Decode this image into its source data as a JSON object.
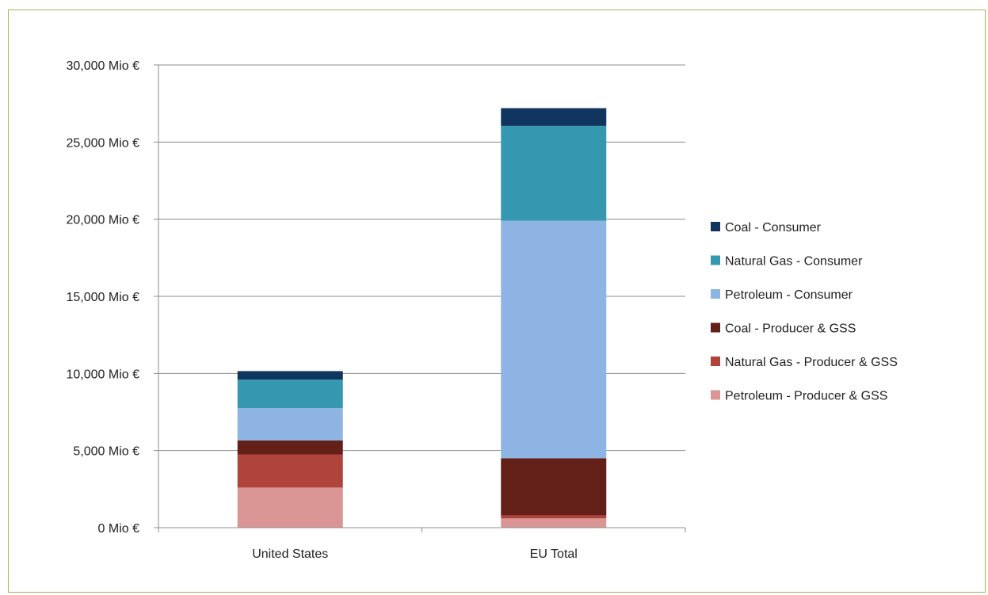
{
  "chart_data": {
    "type": "bar",
    "stacked": true,
    "title": "",
    "xlabel": "",
    "ylabel": "",
    "ylim": [
      0,
      30000
    ],
    "yticks": [
      0,
      5000,
      10000,
      15000,
      20000,
      25000,
      30000
    ],
    "ytick_labels": [
      "0 Mio €",
      "5,000 Mio €",
      "10,000 Mio €",
      "15,000 Mio €",
      "20,000 Mio €",
      "25,000 Mio €",
      "30,000 Mio €"
    ],
    "categories": [
      "United States",
      "EU Total"
    ],
    "grid": true,
    "legend_position": "right",
    "series": [
      {
        "name": "Petroleum - Producer & GSS",
        "color": "#d99694",
        "values": [
          2600,
          600
        ]
      },
      {
        "name": "Natural Gas - Producer & GSS",
        "color": "#b0443c",
        "values": [
          2150,
          200
        ]
      },
      {
        "name": "Coal - Producer & GSS",
        "color": "#632019",
        "values": [
          900,
          3700
        ]
      },
      {
        "name": "Petroleum - Consumer",
        "color": "#8eb4e3",
        "values": [
          2100,
          15400
        ]
      },
      {
        "name": "Natural Gas - Consumer",
        "color": "#3698b0",
        "values": [
          1850,
          6150
        ]
      },
      {
        "name": "Coal - Consumer",
        "color": "#10355f",
        "values": [
          550,
          1150
        ]
      }
    ],
    "legend_order": [
      "Coal - Consumer",
      "Natural Gas - Consumer",
      "Petroleum - Consumer",
      "Coal - Producer & GSS",
      "Natural Gas - Producer & GSS",
      "Petroleum - Producer & GSS"
    ]
  }
}
